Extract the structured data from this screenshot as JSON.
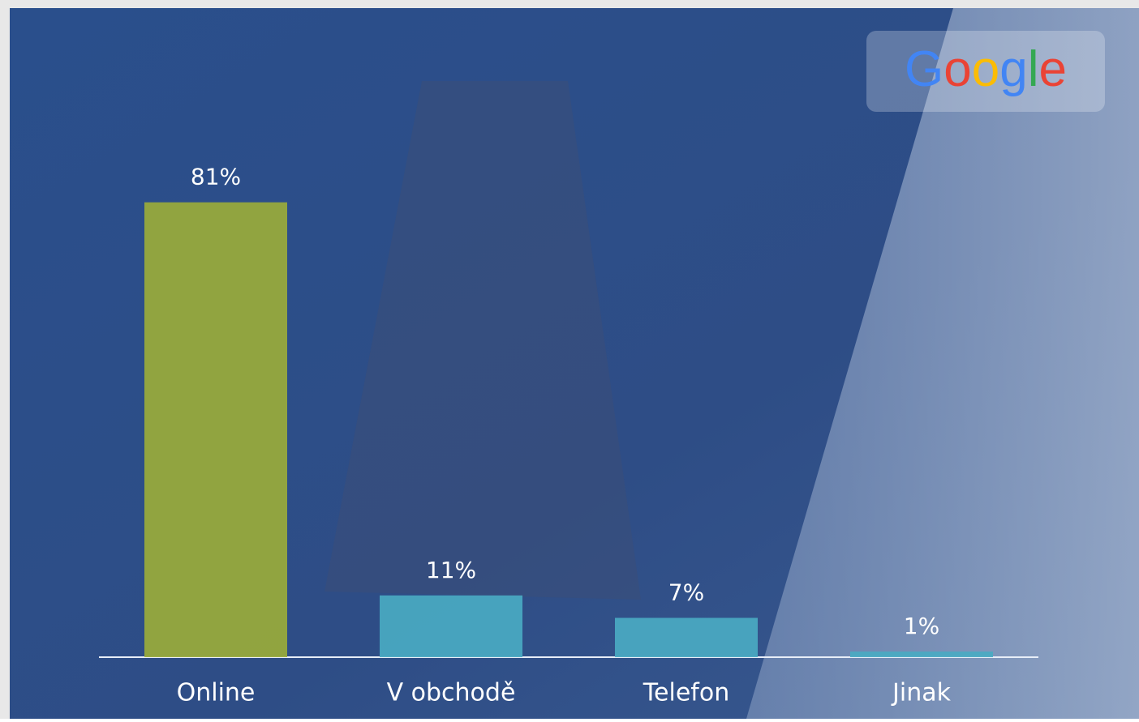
{
  "chart_data": {
    "type": "bar",
    "logo": "Google",
    "categories": [
      "Online",
      "V obchodě",
      "Telefon",
      "Jinak"
    ],
    "values": [
      81,
      11,
      7,
      1
    ],
    "value_labels": [
      "81%",
      "11%",
      "7%",
      "1%"
    ],
    "colors": [
      "#9aab3a",
      "#4aaac2",
      "#4aaac2",
      "#4aaac2"
    ]
  }
}
